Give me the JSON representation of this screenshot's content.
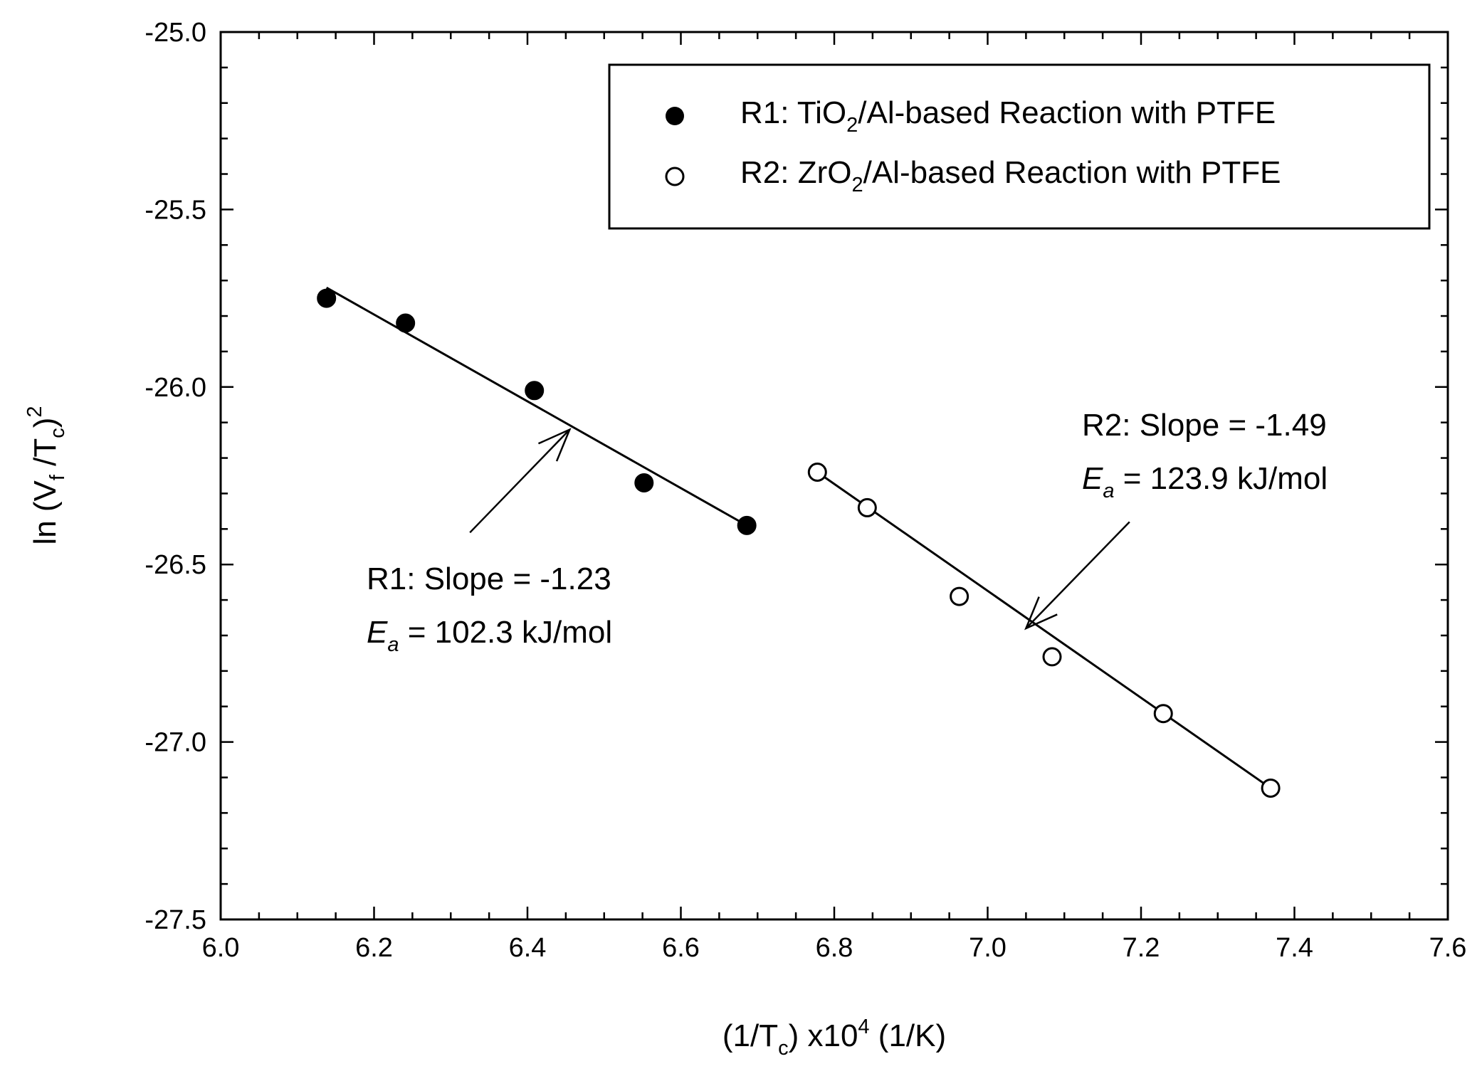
{
  "chart_data": {
    "type": "scatter",
    "xlabel": {
      "pre": "(1/T",
      "sub": "c",
      "mid": ") x10",
      "sup": "4",
      "post": " (1/K)"
    },
    "ylabel": {
      "pre": "ln (V",
      "sub1": "f",
      "mid": " /T",
      "sub2": "c",
      "post": ")",
      "sup": "2"
    },
    "xlim": [
      6.0,
      7.6
    ],
    "ylim": [
      -27.5,
      -25.0
    ],
    "x_major_ticks": [
      6.0,
      6.2,
      6.4,
      6.6,
      6.8,
      7.0,
      7.2,
      7.4,
      7.6
    ],
    "x_tick_labels": [
      "6.0",
      "6.2",
      "6.4",
      "6.6",
      "6.8",
      "7.0",
      "7.2",
      "7.4",
      "7.6"
    ],
    "x_minor_step": 0.05,
    "y_major_ticks": [
      -25.0,
      -25.5,
      -26.0,
      -26.5,
      -27.0,
      -27.5
    ],
    "y_tick_labels": [
      "-25.0",
      "-25.5",
      "-26.0",
      "-26.5",
      "-27.0",
      "-27.5"
    ],
    "y_minor_step": 0.1,
    "grid": false,
    "legend_position": "top-right",
    "series": [
      {
        "name": "R1: TiO2/Al-based Reaction with PTFE",
        "legend": {
          "pre": "R1: TiO",
          "sub": "2",
          "post": "/Al-based Reaction with PTFE"
        },
        "marker": "filled-circle",
        "color": "#000000",
        "x": [
          6.138,
          6.241,
          6.409,
          6.552,
          6.686
        ],
        "y": [
          -25.75,
          -25.82,
          -26.01,
          -26.27,
          -26.39
        ],
        "fit": {
          "x": [
            6.138,
            6.686
          ],
          "y": [
            -25.72,
            -26.39
          ]
        }
      },
      {
        "name": "R2: ZrO2/Al-based Reaction with PTFE",
        "legend": {
          "pre": "R2: ZrO",
          "sub": "2",
          "post": "/Al-based Reaction with PTFE"
        },
        "marker": "open-circle",
        "color": "#000000",
        "x": [
          6.778,
          6.843,
          6.963,
          7.084,
          7.229,
          7.369
        ],
        "y": [
          -26.24,
          -26.34,
          -26.59,
          -26.76,
          -26.92,
          -27.13
        ],
        "fit": {
          "x": [
            6.778,
            7.369
          ],
          "y": [
            -26.24,
            -27.13
          ]
        }
      }
    ],
    "annotations": [
      {
        "id": "r1",
        "line1": "R1: Slope = -1.23",
        "ea_symbol": "E",
        "ea_sub": "a",
        "ea_value": " = 102.3 kJ/mol",
        "arrow_from": [
          6.325,
          -26.41
        ],
        "arrow_to": [
          6.455,
          -26.12
        ]
      },
      {
        "id": "r2",
        "line1": "R2: Slope = -1.49",
        "ea_symbol": "E",
        "ea_sub": "a",
        "ea_value": " = 123.9 kJ/mol",
        "arrow_from": [
          7.185,
          -26.38
        ],
        "arrow_to": [
          7.05,
          -26.68
        ]
      }
    ]
  }
}
